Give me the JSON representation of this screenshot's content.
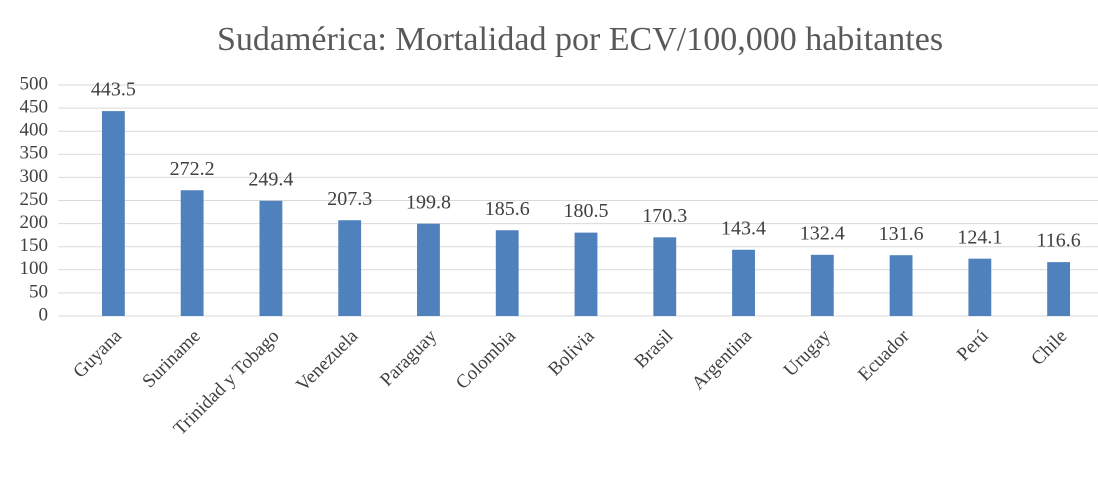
{
  "chart_data": {
    "type": "bar",
    "title": "Sudamérica: Mortalidad por ECV/100,000 habitantes",
    "categories": [
      "Guyana",
      "Suriname",
      "Trinidad y Tobago",
      "Venezuela",
      "Paraguay",
      "Colombia",
      "Bolivia",
      "Brasil",
      "Argentina",
      "Urugay",
      "Ecuador",
      "Perú",
      "Chile"
    ],
    "values": [
      443.5,
      272.2,
      249.4,
      207.3,
      199.8,
      185.6,
      180.5,
      170.3,
      143.4,
      132.4,
      131.6,
      124.1,
      116.6
    ],
    "color": "#4f81bd",
    "ylim": [
      0,
      500
    ],
    "yticks": [
      0,
      50,
      100,
      150,
      200,
      250,
      300,
      350,
      400,
      450,
      500
    ],
    "grid": true
  }
}
